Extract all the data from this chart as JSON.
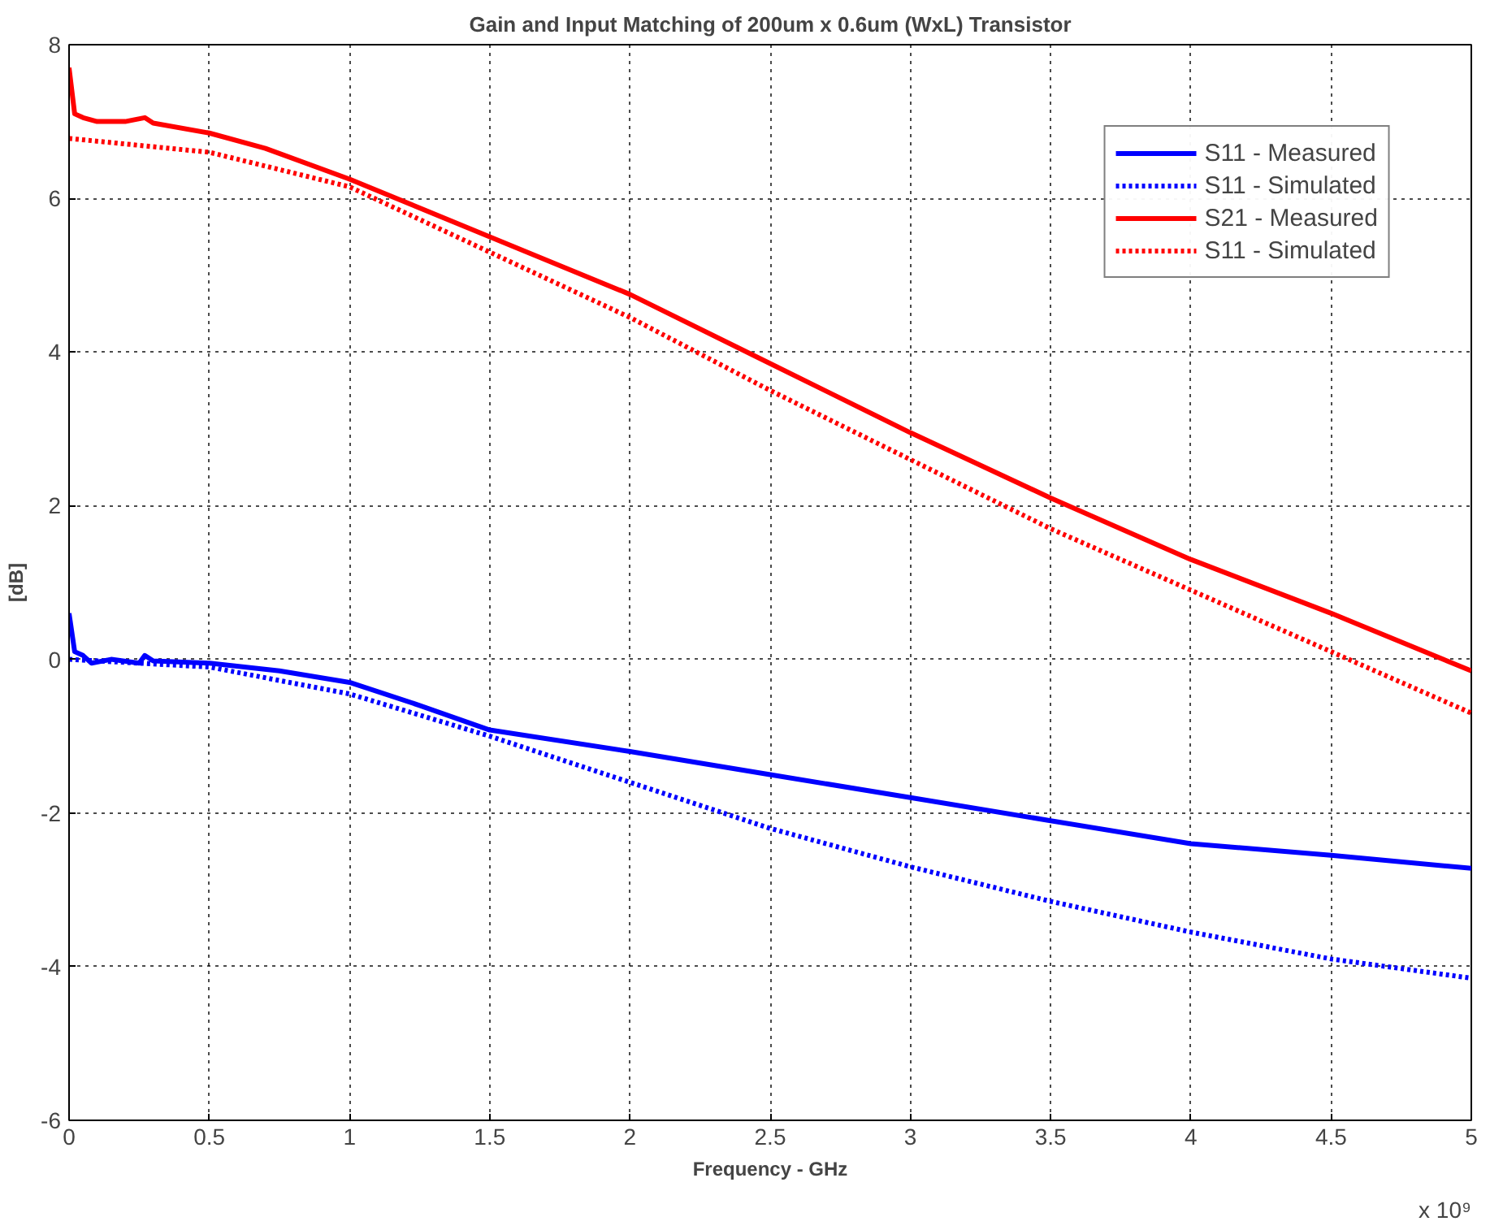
{
  "chart_data": {
    "type": "line",
    "title": "Gain and Input Matching of 200um x 0.6um (WxL) Transistor",
    "xlabel": "Frequency - GHz",
    "ylabel": "[dB]",
    "xlim": [
      0,
      5
    ],
    "ylim": [
      -6,
      8
    ],
    "xticks": [
      0,
      0.5,
      1,
      1.5,
      2,
      2.5,
      3,
      3.5,
      4,
      4.5,
      5
    ],
    "yticks": [
      -6,
      -4,
      -2,
      0,
      2,
      4,
      6,
      8
    ],
    "grid": true,
    "legend": "top right",
    "marker": "none",
    "annotations": [
      "x 10⁹"
    ],
    "series": [
      {
        "name": "S11 - Measured",
        "color": "#0000ff",
        "line_style": "solid",
        "x": [
          0,
          0.02,
          0.05,
          0.08,
          0.15,
          0.25,
          0.27,
          0.3,
          0.5,
          0.75,
          1.0,
          1.25,
          1.5,
          2.0,
          2.5,
          3.0,
          3.5,
          4.0,
          4.5,
          5.0
        ],
        "values": [
          0.6,
          0.1,
          0.05,
          -0.05,
          0.0,
          -0.05,
          0.05,
          -0.02,
          -0.05,
          -0.15,
          -0.3,
          -0.6,
          -0.92,
          -1.2,
          -1.5,
          -1.8,
          -2.1,
          -2.4,
          -2.55,
          -2.72
        ]
      },
      {
        "name": "S11 - Simulated",
        "color": "#0000ff",
        "line_style": "dotted",
        "x": [
          0,
          0.5,
          1.0,
          1.5,
          2.0,
          2.5,
          3.0,
          3.5,
          4.0,
          4.5,
          5.0
        ],
        "values": [
          0.0,
          -0.1,
          -0.45,
          -1.0,
          -1.6,
          -2.2,
          -2.7,
          -3.15,
          -3.55,
          -3.9,
          -4.15
        ]
      },
      {
        "name": "S21 - Measured",
        "color": "#ff0000",
        "line_style": "solid",
        "x": [
          0,
          0.02,
          0.05,
          0.1,
          0.2,
          0.27,
          0.3,
          0.5,
          0.7,
          1.0,
          1.5,
          2.0,
          2.5,
          3.0,
          3.5,
          4.0,
          4.5,
          5.0
        ],
        "values": [
          7.7,
          7.1,
          7.05,
          7.0,
          7.0,
          7.05,
          6.98,
          6.85,
          6.65,
          6.25,
          5.5,
          4.75,
          3.85,
          2.95,
          2.1,
          1.3,
          0.6,
          -0.15
        ]
      },
      {
        "name": "S11 - Simulated",
        "color": "#ff0000",
        "line_style": "dotted",
        "x": [
          0,
          0.5,
          1.0,
          1.5,
          2.0,
          2.5,
          3.0,
          3.5,
          4.0,
          4.5,
          5.0
        ],
        "values": [
          6.78,
          6.6,
          6.15,
          5.3,
          4.45,
          3.5,
          2.6,
          1.7,
          0.9,
          0.1,
          -0.7
        ]
      }
    ]
  }
}
